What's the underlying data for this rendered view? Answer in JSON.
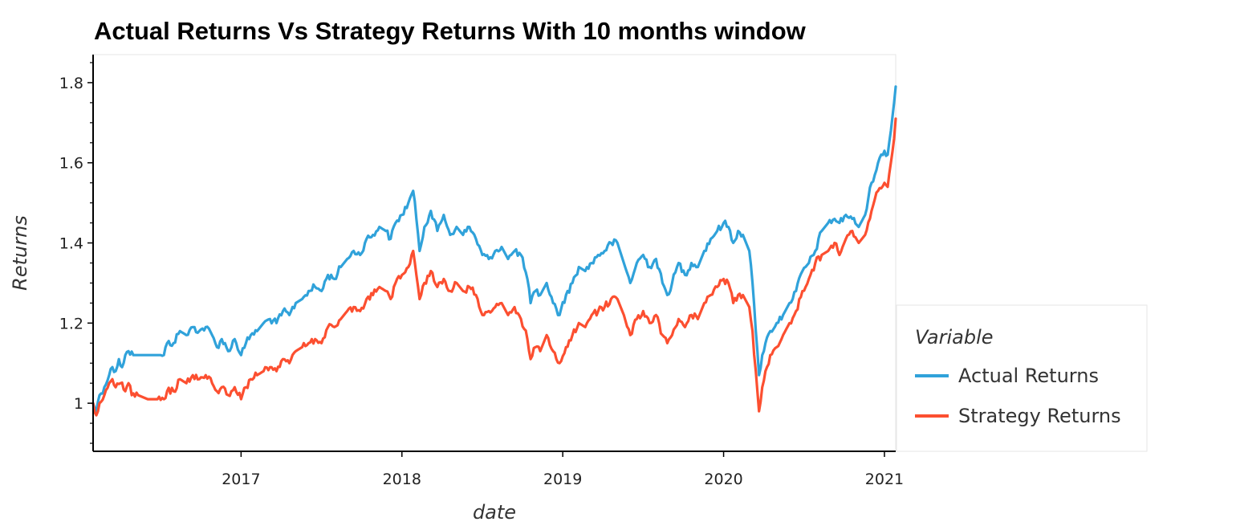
{
  "chart_data": {
    "type": "line",
    "title": "Actual Returns Vs Strategy Returns With 10 months window",
    "xlabel": "date",
    "ylabel": "Returns",
    "xlim": [
      2016.08,
      2021.07
    ],
    "ylim": [
      0.88,
      1.87
    ],
    "x_ticks": [
      2017,
      2018,
      2019,
      2020,
      2021
    ],
    "x_tick_labels": [
      "2017",
      "2018",
      "2019",
      "2020",
      "2021"
    ],
    "y_ticks": [
      1.0,
      1.2,
      1.4,
      1.6,
      1.8
    ],
    "y_tick_labels": [
      "1",
      "1.2",
      "1.4",
      "1.6",
      "1.8"
    ],
    "grid": false,
    "legend": {
      "title": "Variable",
      "placement": "right",
      "entries": [
        "Actual Returns",
        "Strategy Returns"
      ]
    },
    "series": [
      {
        "name": "Actual Returns",
        "color": "#30a2da",
        "points": [
          [
            2016.08,
            1.0
          ],
          [
            2016.1,
            0.98
          ],
          [
            2016.12,
            1.02
          ],
          [
            2016.15,
            1.04
          ],
          [
            2016.18,
            1.07
          ],
          [
            2016.2,
            1.09
          ],
          [
            2016.22,
            1.08
          ],
          [
            2016.24,
            1.11
          ],
          [
            2016.26,
            1.09
          ],
          [
            2016.28,
            1.12
          ],
          [
            2016.3,
            1.13
          ],
          [
            2016.33,
            1.12
          ],
          [
            2016.4,
            1.12
          ],
          [
            2016.45,
            1.12
          ],
          [
            2016.5,
            1.12
          ],
          [
            2016.52,
            1.12
          ],
          [
            2016.54,
            1.15
          ],
          [
            2016.58,
            1.15
          ],
          [
            2016.62,
            1.18
          ],
          [
            2016.66,
            1.17
          ],
          [
            2016.7,
            1.19
          ],
          [
            2016.74,
            1.18
          ],
          [
            2016.78,
            1.19
          ],
          [
            2016.82,
            1.17
          ],
          [
            2016.85,
            1.14
          ],
          [
            2016.88,
            1.16
          ],
          [
            2016.92,
            1.13
          ],
          [
            2016.96,
            1.16
          ],
          [
            2017.0,
            1.12
          ],
          [
            2017.03,
            1.15
          ],
          [
            2017.06,
            1.17
          ],
          [
            2017.1,
            1.18
          ],
          [
            2017.14,
            1.2
          ],
          [
            2017.18,
            1.21
          ],
          [
            2017.22,
            1.2
          ],
          [
            2017.26,
            1.23
          ],
          [
            2017.3,
            1.22
          ],
          [
            2017.34,
            1.25
          ],
          [
            2017.38,
            1.26
          ],
          [
            2017.42,
            1.28
          ],
          [
            2017.46,
            1.29
          ],
          [
            2017.5,
            1.28
          ],
          [
            2017.54,
            1.32
          ],
          [
            2017.58,
            1.31
          ],
          [
            2017.62,
            1.34
          ],
          [
            2017.66,
            1.36
          ],
          [
            2017.7,
            1.38
          ],
          [
            2017.74,
            1.37
          ],
          [
            2017.78,
            1.41
          ],
          [
            2017.82,
            1.42
          ],
          [
            2017.86,
            1.44
          ],
          [
            2017.9,
            1.43
          ],
          [
            2017.93,
            1.41
          ],
          [
            2017.96,
            1.45
          ],
          [
            2018.0,
            1.47
          ],
          [
            2018.04,
            1.5
          ],
          [
            2018.07,
            1.53
          ],
          [
            2018.09,
            1.46
          ],
          [
            2018.11,
            1.38
          ],
          [
            2018.14,
            1.44
          ],
          [
            2018.18,
            1.48
          ],
          [
            2018.22,
            1.43
          ],
          [
            2018.26,
            1.47
          ],
          [
            2018.3,
            1.42
          ],
          [
            2018.34,
            1.44
          ],
          [
            2018.38,
            1.42
          ],
          [
            2018.42,
            1.44
          ],
          [
            2018.46,
            1.41
          ],
          [
            2018.5,
            1.37
          ],
          [
            2018.54,
            1.36
          ],
          [
            2018.58,
            1.38
          ],
          [
            2018.62,
            1.39
          ],
          [
            2018.66,
            1.36
          ],
          [
            2018.7,
            1.38
          ],
          [
            2018.74,
            1.37
          ],
          [
            2018.78,
            1.31
          ],
          [
            2018.8,
            1.25
          ],
          [
            2018.83,
            1.28
          ],
          [
            2018.86,
            1.27
          ],
          [
            2018.9,
            1.3
          ],
          [
            2018.94,
            1.25
          ],
          [
            2018.98,
            1.22
          ],
          [
            2019.02,
            1.27
          ],
          [
            2019.06,
            1.3
          ],
          [
            2019.1,
            1.34
          ],
          [
            2019.14,
            1.33
          ],
          [
            2019.18,
            1.35
          ],
          [
            2019.22,
            1.37
          ],
          [
            2019.26,
            1.38
          ],
          [
            2019.3,
            1.4
          ],
          [
            2019.34,
            1.4
          ],
          [
            2019.38,
            1.35
          ],
          [
            2019.42,
            1.3
          ],
          [
            2019.46,
            1.35
          ],
          [
            2019.5,
            1.37
          ],
          [
            2019.54,
            1.34
          ],
          [
            2019.58,
            1.36
          ],
          [
            2019.62,
            1.3
          ],
          [
            2019.65,
            1.27
          ],
          [
            2019.68,
            1.3
          ],
          [
            2019.72,
            1.35
          ],
          [
            2019.76,
            1.32
          ],
          [
            2019.8,
            1.35
          ],
          [
            2019.84,
            1.34
          ],
          [
            2019.88,
            1.38
          ],
          [
            2019.92,
            1.41
          ],
          [
            2019.96,
            1.43
          ],
          [
            2020.0,
            1.45
          ],
          [
            2020.03,
            1.44
          ],
          [
            2020.06,
            1.4
          ],
          [
            2020.09,
            1.43
          ],
          [
            2020.12,
            1.42
          ],
          [
            2020.16,
            1.38
          ],
          [
            2020.18,
            1.3
          ],
          [
            2020.2,
            1.18
          ],
          [
            2020.22,
            1.07
          ],
          [
            2020.24,
            1.12
          ],
          [
            2020.26,
            1.15
          ],
          [
            2020.29,
            1.18
          ],
          [
            2020.33,
            1.2
          ],
          [
            2020.37,
            1.22
          ],
          [
            2020.41,
            1.25
          ],
          [
            2020.45,
            1.28
          ],
          [
            2020.49,
            1.33
          ],
          [
            2020.53,
            1.35
          ],
          [
            2020.57,
            1.38
          ],
          [
            2020.61,
            1.43
          ],
          [
            2020.65,
            1.45
          ],
          [
            2020.69,
            1.46
          ],
          [
            2020.72,
            1.45
          ],
          [
            2020.76,
            1.47
          ],
          [
            2020.8,
            1.46
          ],
          [
            2020.84,
            1.44
          ],
          [
            2020.88,
            1.47
          ],
          [
            2020.92,
            1.55
          ],
          [
            2020.96,
            1.6
          ],
          [
            2021.0,
            1.63
          ],
          [
            2021.02,
            1.62
          ],
          [
            2021.04,
            1.68
          ],
          [
            2021.06,
            1.75
          ],
          [
            2021.07,
            1.79
          ]
        ]
      },
      {
        "name": "Strategy Returns",
        "color": "#fc4f30",
        "points": [
          [
            2016.08,
            1.0
          ],
          [
            2016.1,
            0.97
          ],
          [
            2016.12,
            1.0
          ],
          [
            2016.15,
            1.02
          ],
          [
            2016.18,
            1.05
          ],
          [
            2016.2,
            1.06
          ],
          [
            2016.22,
            1.04
          ],
          [
            2016.25,
            1.05
          ],
          [
            2016.28,
            1.03
          ],
          [
            2016.3,
            1.05
          ],
          [
            2016.32,
            1.02
          ],
          [
            2016.36,
            1.02
          ],
          [
            2016.42,
            1.01
          ],
          [
            2016.48,
            1.01
          ],
          [
            2016.52,
            1.01
          ],
          [
            2016.54,
            1.03
          ],
          [
            2016.58,
            1.03
          ],
          [
            2016.62,
            1.06
          ],
          [
            2016.66,
            1.05
          ],
          [
            2016.7,
            1.07
          ],
          [
            2016.74,
            1.06
          ],
          [
            2016.78,
            1.07
          ],
          [
            2016.82,
            1.05
          ],
          [
            2016.85,
            1.03
          ],
          [
            2016.88,
            1.04
          ],
          [
            2016.92,
            1.02
          ],
          [
            2016.96,
            1.04
          ],
          [
            2017.0,
            1.01
          ],
          [
            2017.03,
            1.04
          ],
          [
            2017.06,
            1.06
          ],
          [
            2017.1,
            1.07
          ],
          [
            2017.14,
            1.08
          ],
          [
            2017.18,
            1.09
          ],
          [
            2017.22,
            1.08
          ],
          [
            2017.26,
            1.11
          ],
          [
            2017.3,
            1.1
          ],
          [
            2017.34,
            1.13
          ],
          [
            2017.38,
            1.14
          ],
          [
            2017.42,
            1.15
          ],
          [
            2017.46,
            1.16
          ],
          [
            2017.5,
            1.15
          ],
          [
            2017.54,
            1.19
          ],
          [
            2017.58,
            1.19
          ],
          [
            2017.62,
            1.21
          ],
          [
            2017.66,
            1.23
          ],
          [
            2017.7,
            1.24
          ],
          [
            2017.74,
            1.23
          ],
          [
            2017.78,
            1.26
          ],
          [
            2017.82,
            1.27
          ],
          [
            2017.86,
            1.29
          ],
          [
            2017.9,
            1.28
          ],
          [
            2017.93,
            1.26
          ],
          [
            2017.96,
            1.3
          ],
          [
            2018.0,
            1.32
          ],
          [
            2018.04,
            1.34
          ],
          [
            2018.07,
            1.38
          ],
          [
            2018.09,
            1.32
          ],
          [
            2018.11,
            1.26
          ],
          [
            2018.14,
            1.3
          ],
          [
            2018.18,
            1.33
          ],
          [
            2018.22,
            1.29
          ],
          [
            2018.26,
            1.31
          ],
          [
            2018.3,
            1.28
          ],
          [
            2018.34,
            1.3
          ],
          [
            2018.38,
            1.28
          ],
          [
            2018.42,
            1.29
          ],
          [
            2018.46,
            1.27
          ],
          [
            2018.5,
            1.22
          ],
          [
            2018.54,
            1.23
          ],
          [
            2018.58,
            1.24
          ],
          [
            2018.62,
            1.25
          ],
          [
            2018.66,
            1.22
          ],
          [
            2018.7,
            1.24
          ],
          [
            2018.74,
            1.21
          ],
          [
            2018.78,
            1.16
          ],
          [
            2018.8,
            1.11
          ],
          [
            2018.83,
            1.14
          ],
          [
            2018.86,
            1.13
          ],
          [
            2018.9,
            1.17
          ],
          [
            2018.94,
            1.13
          ],
          [
            2018.98,
            1.1
          ],
          [
            2019.02,
            1.14
          ],
          [
            2019.06,
            1.17
          ],
          [
            2019.1,
            1.2
          ],
          [
            2019.14,
            1.19
          ],
          [
            2019.18,
            1.22
          ],
          [
            2019.22,
            1.23
          ],
          [
            2019.26,
            1.24
          ],
          [
            2019.3,
            1.26
          ],
          [
            2019.34,
            1.26
          ],
          [
            2019.38,
            1.22
          ],
          [
            2019.42,
            1.17
          ],
          [
            2019.46,
            1.21
          ],
          [
            2019.5,
            1.23
          ],
          [
            2019.54,
            1.2
          ],
          [
            2019.58,
            1.22
          ],
          [
            2019.62,
            1.17
          ],
          [
            2019.65,
            1.15
          ],
          [
            2019.68,
            1.17
          ],
          [
            2019.72,
            1.21
          ],
          [
            2019.76,
            1.19
          ],
          [
            2019.8,
            1.22
          ],
          [
            2019.84,
            1.21
          ],
          [
            2019.88,
            1.25
          ],
          [
            2019.92,
            1.27
          ],
          [
            2019.96,
            1.29
          ],
          [
            2020.0,
            1.31
          ],
          [
            2020.03,
            1.3
          ],
          [
            2020.06,
            1.25
          ],
          [
            2020.09,
            1.27
          ],
          [
            2020.12,
            1.27
          ],
          [
            2020.16,
            1.24
          ],
          [
            2020.18,
            1.18
          ],
          [
            2020.2,
            1.08
          ],
          [
            2020.22,
            0.98
          ],
          [
            2020.24,
            1.04
          ],
          [
            2020.26,
            1.08
          ],
          [
            2020.29,
            1.12
          ],
          [
            2020.33,
            1.14
          ],
          [
            2020.37,
            1.17
          ],
          [
            2020.41,
            1.2
          ],
          [
            2020.45,
            1.23
          ],
          [
            2020.49,
            1.28
          ],
          [
            2020.53,
            1.31
          ],
          [
            2020.57,
            1.35
          ],
          [
            2020.61,
            1.37
          ],
          [
            2020.65,
            1.38
          ],
          [
            2020.69,
            1.4
          ],
          [
            2020.72,
            1.37
          ],
          [
            2020.76,
            1.41
          ],
          [
            2020.8,
            1.43
          ],
          [
            2020.84,
            1.4
          ],
          [
            2020.88,
            1.42
          ],
          [
            2020.92,
            1.48
          ],
          [
            2020.96,
            1.53
          ],
          [
            2021.0,
            1.55
          ],
          [
            2021.02,
            1.54
          ],
          [
            2021.04,
            1.6
          ],
          [
            2021.06,
            1.66
          ],
          [
            2021.07,
            1.71
          ]
        ]
      }
    ]
  }
}
